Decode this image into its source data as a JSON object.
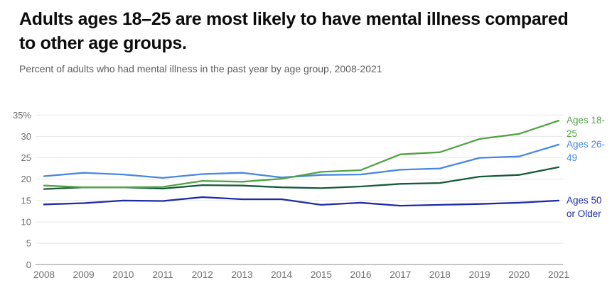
{
  "page": {
    "title": "Adults ages 18–25 are most likely to have mental illness compared to other age groups.",
    "subtitle": "Percent of adults who had mental illness in the past year by age group, 2008-2021"
  },
  "chart_data": {
    "type": "line",
    "title": "Adults ages 18–25 are most likely to have mental illness compared to other age groups.",
    "subtitle": "Percent of adults who had mental illness in the past year by age group, 2008-2021",
    "xlabel": "",
    "ylabel": "",
    "x": [
      2008,
      2009,
      2010,
      2011,
      2012,
      2013,
      2014,
      2015,
      2016,
      2017,
      2018,
      2019,
      2020,
      2021
    ],
    "ylim": [
      0,
      35
    ],
    "ytick_step": 5,
    "ytick_labels": [
      "0",
      "5",
      "10",
      "15",
      "20",
      "25",
      "30",
      "35%"
    ],
    "grid": true,
    "legend_position": "right-of-line-ends",
    "series": [
      {
        "name": "Ages 18-25",
        "label_lines": [
          "Ages 18-",
          "25"
        ],
        "color": "#52a244",
        "values": [
          18.5,
          18.1,
          18.1,
          18.2,
          19.6,
          19.4,
          20.1,
          21.7,
          22.1,
          25.8,
          26.3,
          29.4,
          30.6,
          33.7
        ]
      },
      {
        "name": "Ages 26-49",
        "label_lines": [
          "Ages 26-",
          "49"
        ],
        "color": "#4687e1",
        "values": [
          20.7,
          21.5,
          21.1,
          20.3,
          21.2,
          21.5,
          20.4,
          21.0,
          21.1,
          22.2,
          22.5,
          25.0,
          25.3,
          28.1
        ]
      },
      {
        "name": "",
        "label_lines": [],
        "color": "#16593b",
        "values": [
          17.7,
          18.1,
          18.1,
          17.8,
          18.6,
          18.5,
          18.1,
          17.9,
          18.3,
          18.9,
          19.1,
          20.6,
          21.0,
          22.8
        ]
      },
      {
        "name": "Ages 50 or Older",
        "label_lines": [
          "Ages 50",
          "or Older"
        ],
        "color": "#1e2ba3",
        "values": [
          14.1,
          14.4,
          15.0,
          14.9,
          15.8,
          15.3,
          15.3,
          14.0,
          14.5,
          13.8,
          14.0,
          14.2,
          14.5,
          15.0
        ]
      }
    ]
  }
}
